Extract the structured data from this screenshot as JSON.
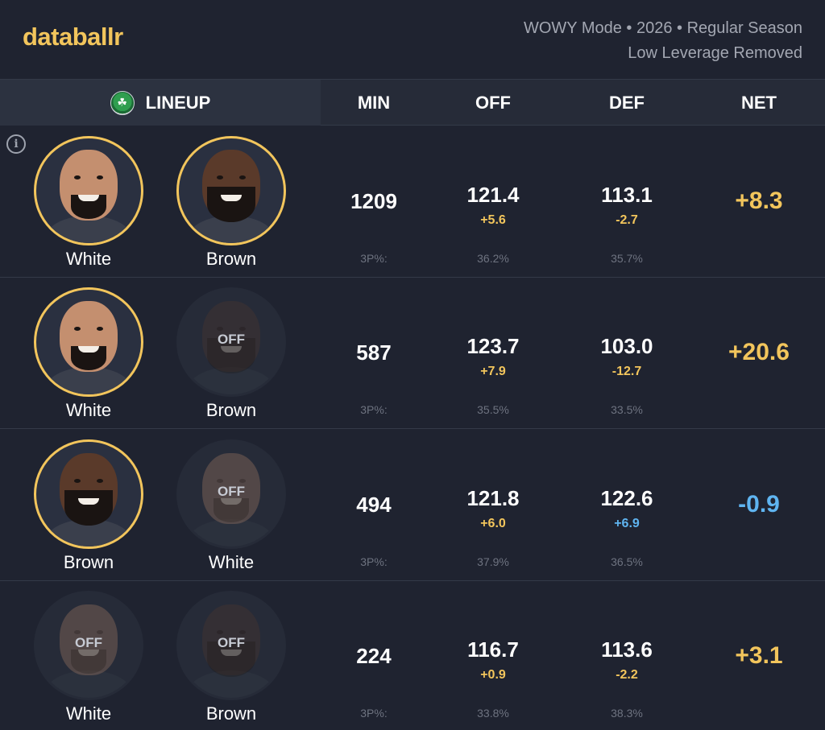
{
  "brand": {
    "logo": "databallr"
  },
  "meta": {
    "line1": "WOWY Mode • 2026 • Regular Season",
    "line2": "Low Leverage Removed"
  },
  "header": {
    "lineup": "LINEUP",
    "min": "MIN",
    "off": "OFF",
    "def": "DEF",
    "net": "NET",
    "team_icon": "celtics-logo"
  },
  "info_icon": "i",
  "off_label": "OFF",
  "rows": [
    {
      "players": [
        {
          "name": "White",
          "status": "on"
        },
        {
          "name": "Brown",
          "status": "on"
        }
      ],
      "min": "1209",
      "off": "121.4",
      "off_delta": "+5.6",
      "def": "113.1",
      "def_delta": "-2.7",
      "pct_label": "3P%:",
      "off_pct": "36.2%",
      "def_pct": "35.7%",
      "net": "+8.3",
      "net_color": "#f2c55c"
    },
    {
      "players": [
        {
          "name": "White",
          "status": "on"
        },
        {
          "name": "Brown",
          "status": "off"
        }
      ],
      "min": "587",
      "off": "123.7",
      "off_delta": "+7.9",
      "def": "103.0",
      "def_delta": "-12.7",
      "pct_label": "3P%:",
      "off_pct": "35.5%",
      "def_pct": "33.5%",
      "net": "+20.6",
      "net_color": "#f2c55c"
    },
    {
      "players": [
        {
          "name": "Brown",
          "status": "on"
        },
        {
          "name": "White",
          "status": "off"
        }
      ],
      "min": "494",
      "off": "121.8",
      "off_delta": "+6.0",
      "def": "122.6",
      "def_delta": "+6.9",
      "pct_label": "3P%:",
      "off_pct": "37.9%",
      "def_pct": "36.5%",
      "net": "-0.9",
      "net_color": "#5fb4f0"
    },
    {
      "players": [
        {
          "name": "White",
          "status": "off"
        },
        {
          "name": "Brown",
          "status": "off"
        }
      ],
      "min": "224",
      "off": "116.7",
      "off_delta": "+0.9",
      "def": "113.6",
      "def_delta": "-2.2",
      "pct_label": "3P%:",
      "off_pct": "33.8%",
      "def_pct": "38.3%",
      "net": "+3.1",
      "net_color": "#f2c55c"
    }
  ]
}
